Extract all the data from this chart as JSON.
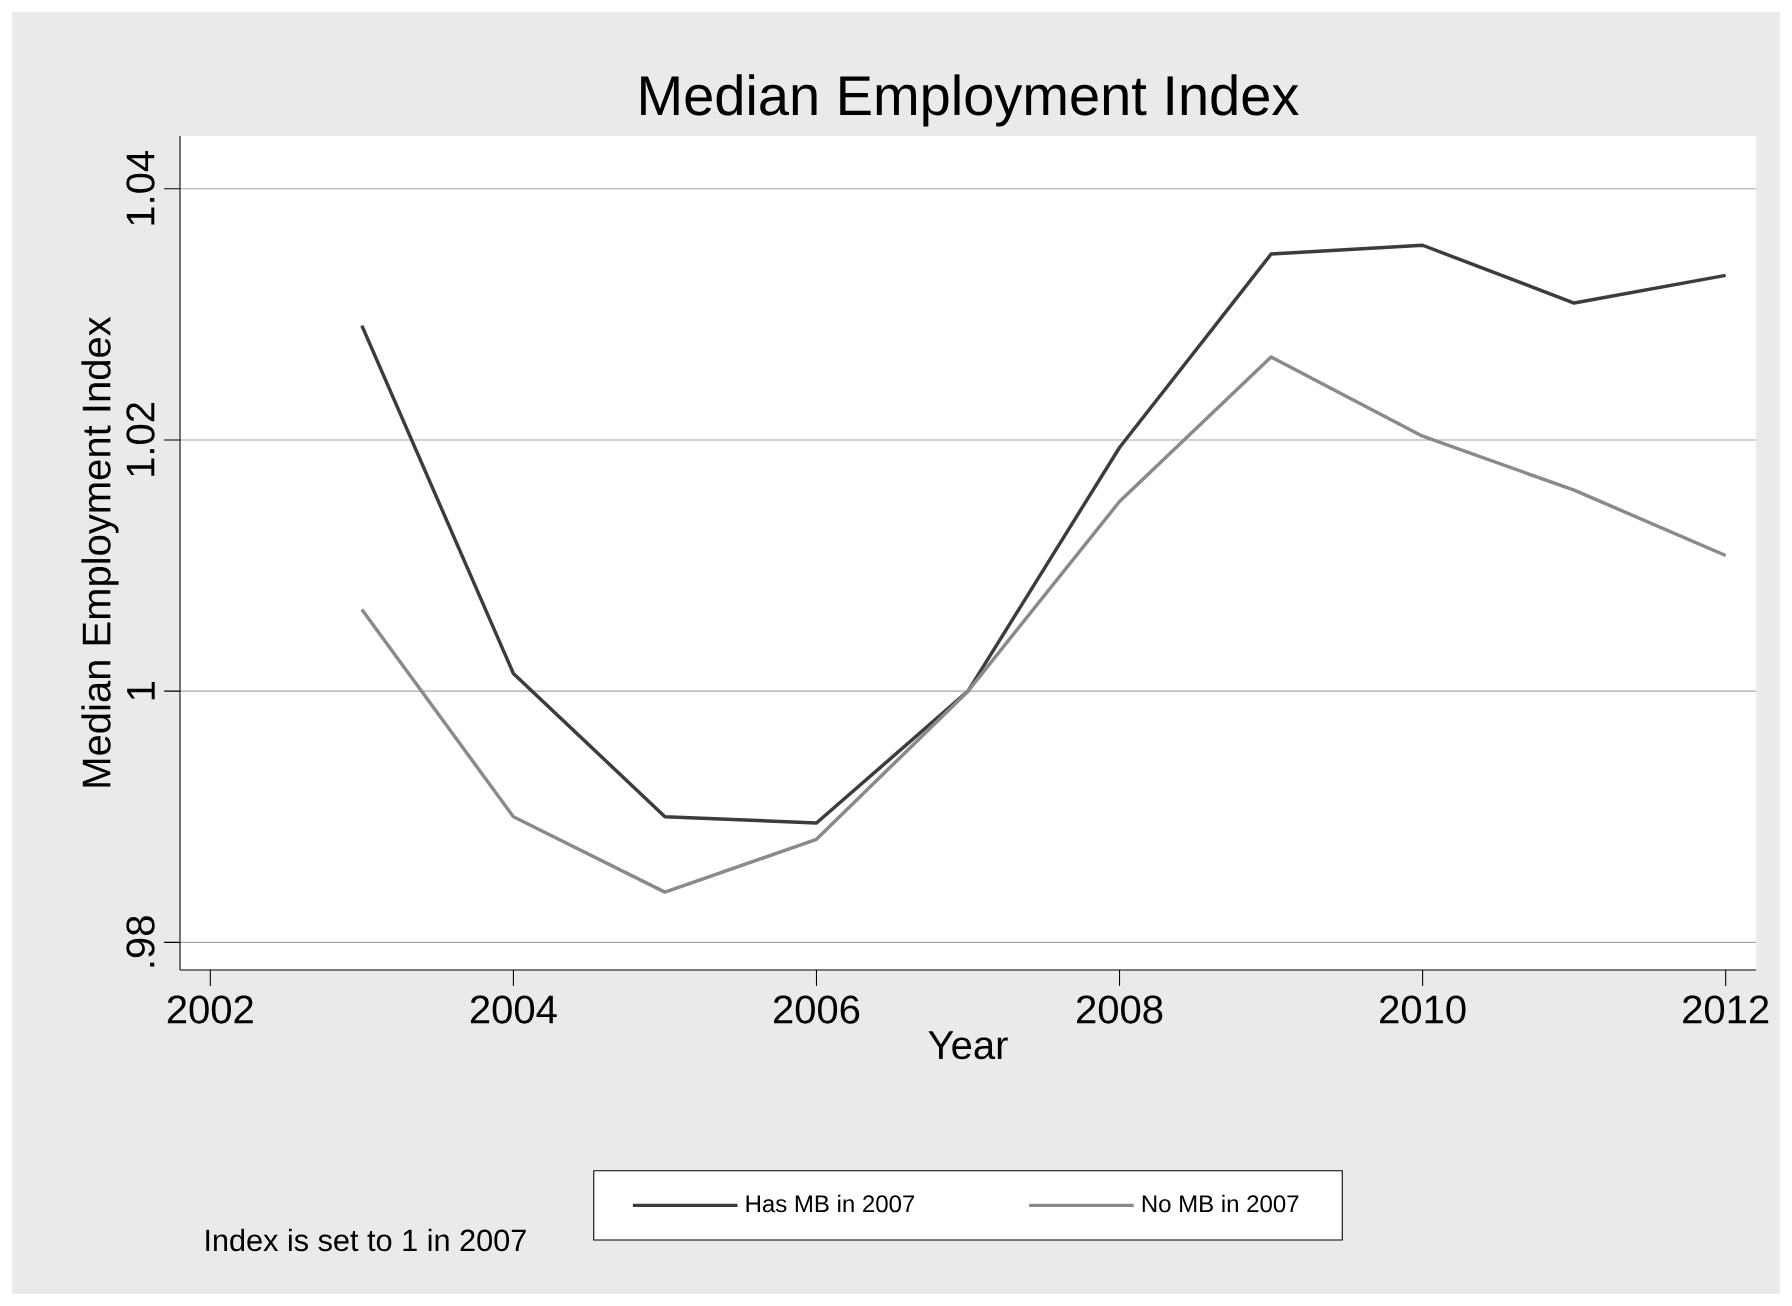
{
  "chart_data": {
    "type": "line",
    "title": "Median Employment Index",
    "xlabel": "Year",
    "ylabel": "Median Employment Index",
    "x": [
      2003,
      2004,
      2005,
      2006,
      2007,
      2008,
      2009,
      2010,
      2011,
      2012
    ],
    "series": [
      {
        "name": "Has MB in 2007",
        "color": "#3c3c3c",
        "values": [
          1.0291,
          1.0014,
          0.99,
          0.9895,
          1.0,
          1.0194,
          1.0348,
          1.0355,
          1.0309,
          1.0331
        ]
      },
      {
        "name": "No MB in 2007",
        "color": "#8a8a8a",
        "values": [
          1.0065,
          0.99,
          0.984,
          0.9882,
          1.0,
          1.0151,
          1.0266,
          1.0203,
          1.016,
          1.0108
        ]
      }
    ],
    "xlim": [
      2001.8,
      2012.2
    ],
    "ylim": [
      0.9778,
      1.0442
    ],
    "xticks": [
      2002,
      2004,
      2006,
      2008,
      2010,
      2012
    ],
    "yticks": [
      {
        "value": 0.98,
        "label": ".98"
      },
      1,
      1.02,
      1.04
    ],
    "grid": "y",
    "legend": "bottom",
    "marker": "none",
    "line_style": "solid",
    "annotations": [
      "Index is set to 1 in 2007"
    ]
  }
}
